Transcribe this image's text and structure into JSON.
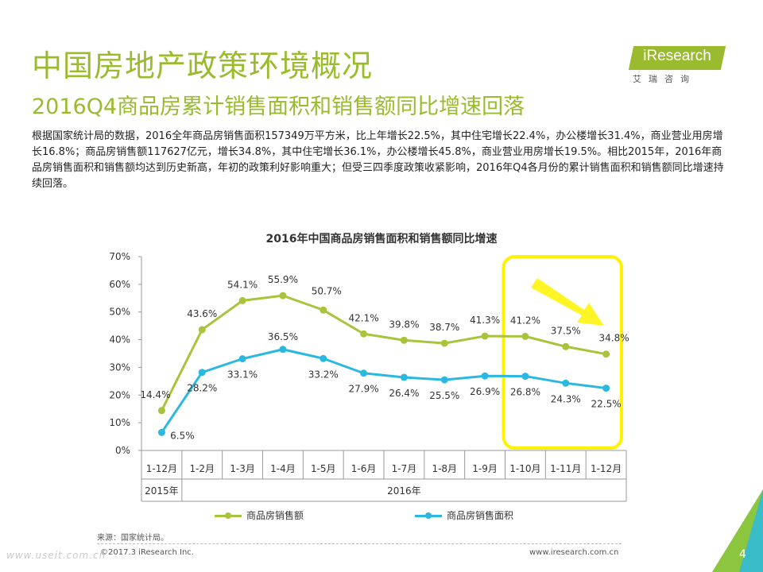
{
  "header": {
    "title": "中国房地产政策环境概况",
    "subtitle": "2016Q4商品房累计销售面积和销售额同比增速回落"
  },
  "logo": {
    "text": "iResearch",
    "cn": "艾瑞咨询"
  },
  "paragraph": "根据国家统计局的数据，2016全年商品房销售面积157349万平方米，比上年增长22.5%，其中住宅增长22.4%，办公楼增长31.4%，商业营业用房增长16.8%；商品房销售额117627亿元，增长34.8%，其中住宅增长36.1%，办公楼增长45.8%，商业营业用房增长19.5%。相比2015年，2016年商品房销售面积和销售额均达到历史新高，年初的政策利好影响重大；但受三四季度政策收紧影响，2016年Q4各月份的累计销售面积和销售额同比增速持续回落。",
  "chart_data": {
    "type": "line",
    "title": "2016年中国商品房销售面积和销售额同比增速",
    "categories": [
      "1-12月",
      "1-2月",
      "1-3月",
      "1-4月",
      "1-5月",
      "1-6月",
      "1-7月",
      "1-8月",
      "1-9月",
      "1-10月",
      "1-11月",
      "1-12月"
    ],
    "year_groups": [
      {
        "label": "2015年",
        "span": 1
      },
      {
        "label": "2016年",
        "span": 11
      }
    ],
    "y_ticks": [
      "0%",
      "10%",
      "20%",
      "30%",
      "40%",
      "50%",
      "60%",
      "70%"
    ],
    "ylim": [
      0,
      70
    ],
    "series": [
      {
        "name": "商品房销售额",
        "color": "#A8C43C",
        "values": [
          14.4,
          43.6,
          54.1,
          55.9,
          50.7,
          42.1,
          39.8,
          38.7,
          41.3,
          41.2,
          37.5,
          34.8
        ],
        "labels": [
          "14.4%",
          "43.6%",
          "54.1%",
          "55.9%",
          "50.7%",
          "42.1%",
          "39.8%",
          "38.7%",
          "41.3%",
          "41.2%",
          "37.5%",
          "34.8%"
        ]
      },
      {
        "name": "商品房销售面积",
        "color": "#2BB8E0",
        "values": [
          6.5,
          28.2,
          33.1,
          36.5,
          33.2,
          27.9,
          26.4,
          25.5,
          26.9,
          26.8,
          24.3,
          22.5
        ],
        "labels": [
          "6.5%",
          "28.2%",
          "33.1%",
          "36.5%",
          "33.2%",
          "27.9%",
          "26.4%",
          "25.5%",
          "26.9%",
          "26.8%",
          "24.3%",
          "22.5%"
        ]
      }
    ],
    "highlight": {
      "color": "#FFF200",
      "from_index": 9,
      "to_index": 11
    }
  },
  "source": "来源：国家统计局。",
  "footer": {
    "copyright": "©2017.3 iResearch Inc.",
    "website": "www.iresearch.com.cn",
    "page": "4",
    "watermark": "www.useit.com.cn"
  },
  "colors": {
    "accent": "#9BBB2E",
    "teal": "#2BB8E0",
    "highlight": "#FFF200"
  }
}
